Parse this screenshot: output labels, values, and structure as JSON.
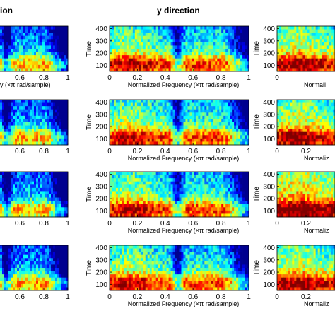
{
  "column_titles": [
    "ion",
    "y direction"
  ],
  "colormap": [
    "#00008f",
    "#0000ff",
    "#0080ff",
    "#00ffff",
    "#80ff80",
    "#ffff00",
    "#ff8000",
    "#ff0000",
    "#800000"
  ],
  "chart_data": [
    {
      "type": "heatmap",
      "panel": "left-row-1",
      "xticks": [
        "0.6",
        "0.8",
        "1"
      ],
      "xtick_values": [
        0.6,
        0.8,
        1.0
      ],
      "xrange": [
        0.4,
        1.0
      ],
      "xlabel": "y  (×π rad/sample)",
      "ylabel": "",
      "yticks": [],
      "intensity": "moderate, decreasing to blue near 1"
    },
    {
      "type": "heatmap",
      "panel": "center-row-1",
      "xticks": [
        "0",
        "0.2",
        "0.4",
        "0.6",
        "0.8",
        "1"
      ],
      "xtick_values": [
        0,
        0.2,
        0.4,
        0.6,
        0.8,
        1.0
      ],
      "xrange": [
        0,
        1
      ],
      "yticks": [
        "100",
        "200",
        "300",
        "400"
      ],
      "ytick_values": [
        100,
        200,
        300,
        400
      ],
      "yrange": [
        50,
        420
      ],
      "xlabel": "Normalized Frequency  (×π rad/sample)",
      "ylabel": "Time"
    },
    {
      "type": "heatmap",
      "panel": "right-row-1",
      "xticks": [
        "0"
      ],
      "xtick_values": [
        0
      ],
      "xrange": [
        0,
        0.4
      ],
      "yticks": [
        "100",
        "200",
        "300",
        "400"
      ],
      "ytick_values": [
        100,
        200,
        300,
        400
      ],
      "yrange": [
        50,
        420
      ],
      "xlabel": "Normali",
      "ylabel": "Time"
    },
    {
      "type": "heatmap",
      "panel": "left-row-2",
      "xticks": [
        "0.6",
        "0.8",
        "1"
      ],
      "xtick_values": [
        0.6,
        0.8,
        1.0
      ],
      "xrange": [
        0.4,
        1.0
      ],
      "xlabel": "",
      "ylabel": ""
    },
    {
      "type": "heatmap",
      "panel": "center-row-2",
      "xticks": [
        "0",
        "0.2",
        "0.4",
        "0.6",
        "0.8",
        "1"
      ],
      "xtick_values": [
        0,
        0.2,
        0.4,
        0.6,
        0.8,
        1.0
      ],
      "xrange": [
        0,
        1
      ],
      "yticks": [
        "100",
        "200",
        "300",
        "400"
      ],
      "ytick_values": [
        100,
        200,
        300,
        400
      ],
      "yrange": [
        50,
        420
      ],
      "xlabel": "Normalized Frequency  (×π rad/sample)",
      "ylabel": "Time"
    },
    {
      "type": "heatmap",
      "panel": "right-row-2",
      "xticks": [
        "0",
        "0.2"
      ],
      "xtick_values": [
        0,
        0.2
      ],
      "xrange": [
        0,
        0.4
      ],
      "yticks": [
        "100",
        "200",
        "300",
        "400"
      ],
      "ytick_values": [
        100,
        200,
        300,
        400
      ],
      "yrange": [
        50,
        420
      ],
      "xlabel": "Normaliz",
      "ylabel": "Time"
    },
    {
      "type": "heatmap",
      "panel": "left-row-3",
      "xticks": [
        "0.6",
        "0.8",
        "1"
      ],
      "xtick_values": [
        0.6,
        0.8,
        1.0
      ],
      "xrange": [
        0.4,
        1.0
      ],
      "xlabel": "",
      "ylabel": ""
    },
    {
      "type": "heatmap",
      "panel": "center-row-3",
      "xticks": [
        "0",
        "0.2",
        "0.4",
        "0.6",
        "0.8",
        "1"
      ],
      "xtick_values": [
        0,
        0.2,
        0.4,
        0.6,
        0.8,
        1.0
      ],
      "xrange": [
        0,
        1
      ],
      "yticks": [
        "100",
        "200",
        "300",
        "400"
      ],
      "ytick_values": [
        100,
        200,
        300,
        400
      ],
      "yrange": [
        50,
        420
      ],
      "xlabel": "Normalized Frequency  (×π rad/sample)",
      "ylabel": "Time"
    },
    {
      "type": "heatmap",
      "panel": "right-row-3",
      "xticks": [
        "0",
        "0.2"
      ],
      "xtick_values": [
        0,
        0.2
      ],
      "xrange": [
        0,
        0.4
      ],
      "yticks": [
        "100",
        "200",
        "300",
        "400"
      ],
      "ytick_values": [
        100,
        200,
        300,
        400
      ],
      "yrange": [
        50,
        420
      ],
      "xlabel": "Normaliz",
      "ylabel": "Time"
    },
    {
      "type": "heatmap",
      "panel": "left-row-4",
      "xticks": [
        "0.6",
        "0.8",
        "1"
      ],
      "xtick_values": [
        0.6,
        0.8,
        1.0
      ],
      "xrange": [
        0.4,
        1.0
      ],
      "xlabel": "",
      "ylabel": ""
    },
    {
      "type": "heatmap",
      "panel": "center-row-4",
      "xticks": [
        "0",
        "0.2",
        "0.4",
        "0.6",
        "0.8",
        "1"
      ],
      "xtick_values": [
        0,
        0.2,
        0.4,
        0.6,
        0.8,
        1.0
      ],
      "xrange": [
        0,
        1
      ],
      "yticks": [
        "100",
        "200",
        "300",
        "400"
      ],
      "ytick_values": [
        100,
        200,
        300,
        400
      ],
      "yrange": [
        50,
        420
      ],
      "xlabel": "Normalized Frequency  (×π rad/sample)",
      "ylabel": "Time"
    },
    {
      "type": "heatmap",
      "panel": "right-row-4",
      "xticks": [
        "0",
        "0.2"
      ],
      "xtick_values": [
        0,
        0.2
      ],
      "xrange": [
        0,
        0.4
      ],
      "yticks": [
        "100",
        "200",
        "300",
        "400"
      ],
      "ytick_values": [
        100,
        200,
        300,
        400
      ],
      "yrange": [
        50,
        420
      ],
      "xlabel": "Normaliz",
      "ylabel": "Time"
    }
  ]
}
